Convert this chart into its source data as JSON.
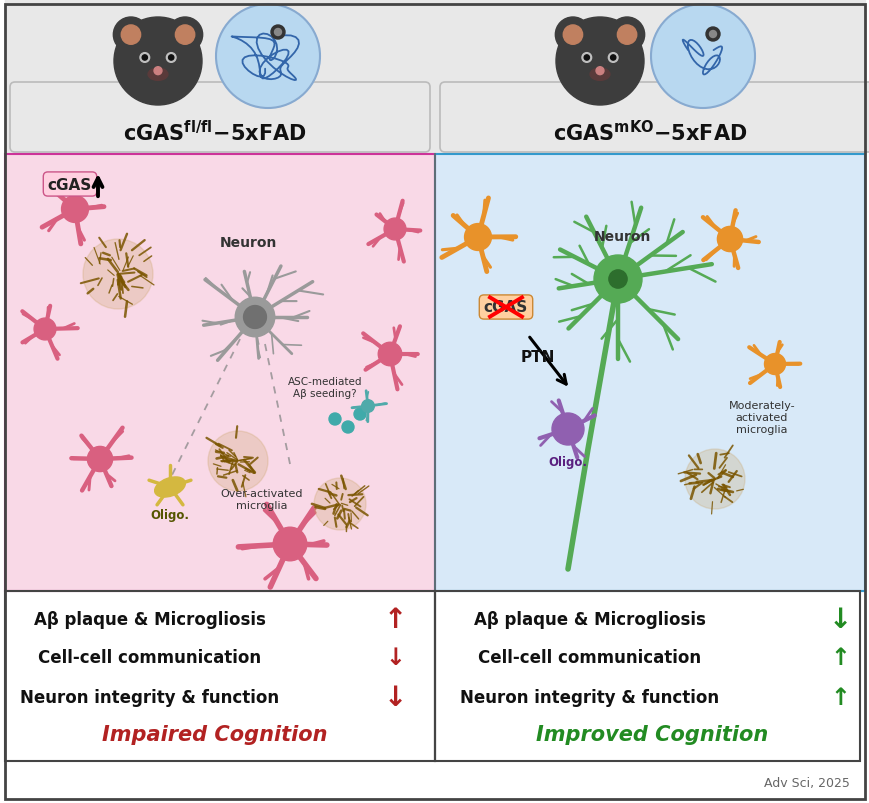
{
  "fig_width": 8.7,
  "fig_height": 8.04,
  "dpi": 100,
  "bg_color": "#ffffff",
  "left_panel_bg": "#f9d9e7",
  "right_panel_bg": "#d8e9f8",
  "header_bg": "#e0e0e0",
  "bottom_left_lines": [
    "Aβ plaque & Microgliosis",
    "Cell-cell communication",
    "Neuron integrity & function"
  ],
  "bottom_right_lines": [
    "Aβ plaque & Microgliosis",
    "Cell-cell communication",
    "Neuron integrity & function"
  ],
  "left_up_arrow": "↑",
  "left_down_arrow": "↓",
  "right_up_arrow": "↑",
  "right_down_arrow": "↓",
  "left_arrow_color": "#b22222",
  "right_arrow_color": "#228B22",
  "left_conclusion": "Impaired Cognition",
  "right_conclusion": "Improved Cognition",
  "left_conclusion_color": "#b22222",
  "right_conclusion_color": "#228B22",
  "citation": "Adv Sci, 2025"
}
